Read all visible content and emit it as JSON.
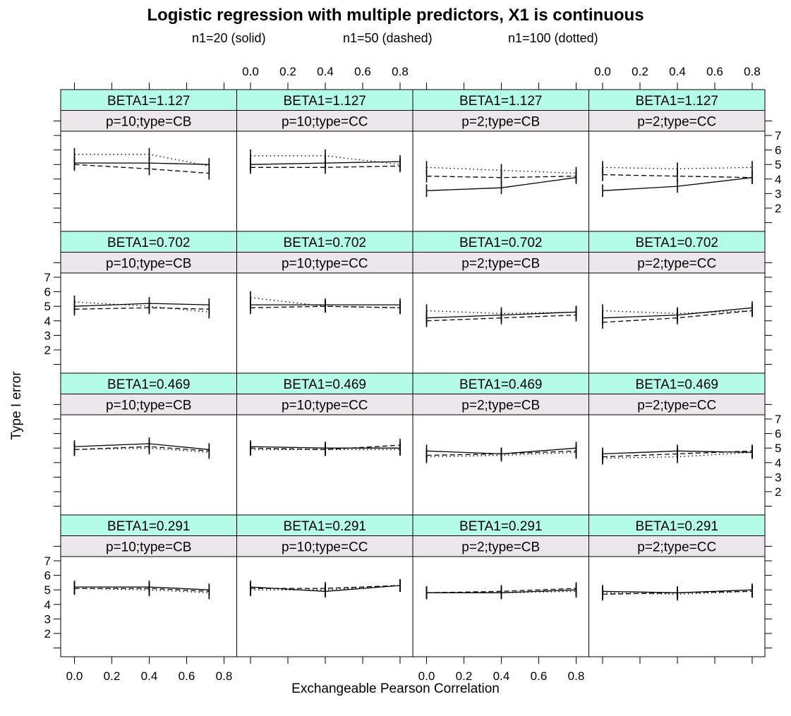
{
  "title": "Logistic regression with multiple predictors, X1 is continuous",
  "legend": {
    "solid": "n1=20 (solid)",
    "dashed": "n1=50 (dashed)",
    "dotted": "n1=100 (dotted)"
  },
  "colors": {
    "strip_top": "#b4fce8",
    "strip_bottom": "#ebe7eb",
    "line": "#000000"
  },
  "chart_data": {
    "type": "line",
    "layout": "trellis 4x4",
    "title": "Logistic regression with multiple predictors, X1 is continuous",
    "xlabel": "Exchangeable Pearson Correlation",
    "ylabel": "Type I error",
    "x_ticks": [
      "0.0",
      "0.2",
      "0.4",
      "0.6",
      "0.8"
    ],
    "y_ticks": [
      "2",
      "3",
      "4",
      "5",
      "6",
      "7"
    ],
    "xlim": [
      -0.1,
      0.85
    ],
    "ylim": [
      1,
      8
    ],
    "series_names": [
      "n1=20 (solid)",
      "n1=50 (dashed)",
      "n1=100 (dotted)"
    ],
    "panels": [
      {
        "strip_top": "BETA1=1.127",
        "strip_bottom": "p=10;type=CB",
        "x": [
          0.0,
          0.4,
          0.72
        ],
        "series": [
          {
            "style": "solid",
            "values": [
              5.1,
              5.1,
              5.0
            ]
          },
          {
            "style": "dashed",
            "values": [
              5.0,
              4.7,
              4.4
            ]
          },
          {
            "style": "dotted",
            "values": [
              5.7,
              5.7,
              4.9
            ]
          }
        ]
      },
      {
        "strip_top": "BETA1=1.127",
        "strip_bottom": "p=10;type=CC",
        "x": [
          0.0,
          0.4,
          0.8
        ],
        "series": [
          {
            "style": "solid",
            "values": [
              5.0,
              5.1,
              5.2
            ]
          },
          {
            "style": "dashed",
            "values": [
              4.8,
              4.8,
              4.9
            ]
          },
          {
            "style": "dotted",
            "values": [
              5.6,
              5.6,
              5.0
            ]
          }
        ]
      },
      {
        "strip_top": "BETA1=1.127",
        "strip_bottom": "p=2;type=CB",
        "x": [
          0.0,
          0.4,
          0.8
        ],
        "series": [
          {
            "style": "solid",
            "values": [
              3.2,
              3.4,
              4.1
            ]
          },
          {
            "style": "dashed",
            "values": [
              4.2,
              4.1,
              4.2
            ]
          },
          {
            "style": "dotted",
            "values": [
              4.8,
              4.6,
              4.4
            ]
          }
        ]
      },
      {
        "strip_top": "BETA1=1.127",
        "strip_bottom": "p=2;type=CC",
        "x": [
          0.0,
          0.4,
          0.8
        ],
        "series": [
          {
            "style": "solid",
            "values": [
              3.2,
              3.5,
              4.1
            ]
          },
          {
            "style": "dashed",
            "values": [
              4.3,
              4.2,
              4.1
            ]
          },
          {
            "style": "dotted",
            "values": [
              4.8,
              4.7,
              4.8
            ]
          }
        ]
      },
      {
        "strip_top": "BETA1=0.702",
        "strip_bottom": "p=10;type=CB",
        "x": [
          0.0,
          0.4,
          0.72
        ],
        "series": [
          {
            "style": "solid",
            "values": [
              5.0,
              5.2,
              5.1
            ]
          },
          {
            "style": "dashed",
            "values": [
              4.8,
              4.9,
              4.8
            ]
          },
          {
            "style": "dotted",
            "values": [
              5.3,
              5.0,
              4.6
            ]
          }
        ]
      },
      {
        "strip_top": "BETA1=0.702",
        "strip_bottom": "p=10;type=CC",
        "x": [
          0.0,
          0.4,
          0.8
        ],
        "series": [
          {
            "style": "solid",
            "values": [
              5.1,
              5.1,
              5.1
            ]
          },
          {
            "style": "dashed",
            "values": [
              4.9,
              5.0,
              4.9
            ]
          },
          {
            "style": "dotted",
            "values": [
              5.6,
              5.0,
              4.9
            ]
          }
        ]
      },
      {
        "strip_top": "BETA1=0.702",
        "strip_bottom": "p=2;type=CB",
        "x": [
          0.0,
          0.4,
          0.8
        ],
        "series": [
          {
            "style": "solid",
            "values": [
              4.2,
              4.4,
              4.6
            ]
          },
          {
            "style": "dashed",
            "values": [
              4.0,
              4.2,
              4.4
            ]
          },
          {
            "style": "dotted",
            "values": [
              4.7,
              4.5,
              4.6
            ]
          }
        ]
      },
      {
        "strip_top": "BETA1=0.702",
        "strip_bottom": "p=2;type=CC",
        "x": [
          0.0,
          0.4,
          0.8
        ],
        "series": [
          {
            "style": "solid",
            "values": [
              4.2,
              4.4,
              4.9
            ]
          },
          {
            "style": "dashed",
            "values": [
              3.9,
              4.2,
              4.7
            ]
          },
          {
            "style": "dotted",
            "values": [
              4.7,
              4.5,
              4.7
            ]
          }
        ]
      },
      {
        "strip_top": "BETA1=0.469",
        "strip_bottom": "p=10;type=CB",
        "x": [
          0.0,
          0.4,
          0.72
        ],
        "series": [
          {
            "style": "solid",
            "values": [
              5.1,
              5.3,
              4.9
            ]
          },
          {
            "style": "dashed",
            "values": [
              4.9,
              5.1,
              4.8
            ]
          },
          {
            "style": "dotted",
            "values": [
              4.9,
              5.0,
              4.7
            ]
          }
        ]
      },
      {
        "strip_top": "BETA1=0.469",
        "strip_bottom": "p=10;type=CC",
        "x": [
          0.0,
          0.4,
          0.8
        ],
        "series": [
          {
            "style": "solid",
            "values": [
              5.1,
              5.0,
              5.0
            ]
          },
          {
            "style": "dashed",
            "values": [
              5.0,
              4.9,
              5.2
            ]
          },
          {
            "style": "dotted",
            "values": [
              4.9,
              4.9,
              4.9
            ]
          }
        ]
      },
      {
        "strip_top": "BETA1=0.469",
        "strip_bottom": "p=2;type=CB",
        "x": [
          0.0,
          0.4,
          0.8
        ],
        "series": [
          {
            "style": "solid",
            "values": [
              4.8,
              4.6,
              5.0
            ]
          },
          {
            "style": "dashed",
            "values": [
              4.5,
              4.6,
              4.8
            ]
          },
          {
            "style": "dotted",
            "values": [
              4.4,
              4.5,
              4.7
            ]
          }
        ]
      },
      {
        "strip_top": "BETA1=0.469",
        "strip_bottom": "p=2;type=CC",
        "x": [
          0.0,
          0.4,
          0.8
        ],
        "series": [
          {
            "style": "solid",
            "values": [
              4.6,
              4.8,
              4.7
            ]
          },
          {
            "style": "dashed",
            "values": [
              4.4,
              4.6,
              4.8
            ]
          },
          {
            "style": "dotted",
            "values": [
              4.3,
              4.4,
              4.7
            ]
          }
        ]
      },
      {
        "strip_top": "BETA1=0.291",
        "strip_bottom": "p=10;type=CB",
        "x": [
          0.0,
          0.4,
          0.72
        ],
        "series": [
          {
            "style": "solid",
            "values": [
              5.2,
              5.2,
              5.0
            ]
          },
          {
            "style": "dashed",
            "values": [
              5.1,
              5.1,
              4.9
            ]
          },
          {
            "style": "dotted",
            "values": [
              5.1,
              5.0,
              4.8
            ]
          }
        ]
      },
      {
        "strip_top": "BETA1=0.291",
        "strip_bottom": "p=10;type=CC",
        "x": [
          0.0,
          0.4,
          0.8
        ],
        "series": [
          {
            "style": "solid",
            "values": [
              5.2,
              4.9,
              5.3
            ]
          },
          {
            "style": "dashed",
            "values": [
              5.1,
              5.1,
              5.3
            ]
          },
          {
            "style": "dotted",
            "values": [
              5.0,
              5.0,
              5.3
            ]
          }
        ]
      },
      {
        "strip_top": "BETA1=0.291",
        "strip_bottom": "p=2;type=CB",
        "x": [
          0.0,
          0.4,
          0.8
        ],
        "series": [
          {
            "style": "solid",
            "values": [
              4.8,
              4.8,
              5.0
            ]
          },
          {
            "style": "dashed",
            "values": [
              4.8,
              4.9,
              5.1
            ]
          },
          {
            "style": "dotted",
            "values": [
              4.8,
              4.8,
              4.9
            ]
          }
        ]
      },
      {
        "strip_top": "BETA1=0.291",
        "strip_bottom": "p=2;type=CC",
        "x": [
          0.0,
          0.4,
          0.8
        ],
        "series": [
          {
            "style": "solid",
            "values": [
              4.9,
              4.8,
              5.0
            ]
          },
          {
            "style": "dashed",
            "values": [
              4.7,
              4.8,
              4.9
            ]
          },
          {
            "style": "dotted",
            "values": [
              4.8,
              4.7,
              4.9
            ]
          }
        ]
      }
    ]
  }
}
